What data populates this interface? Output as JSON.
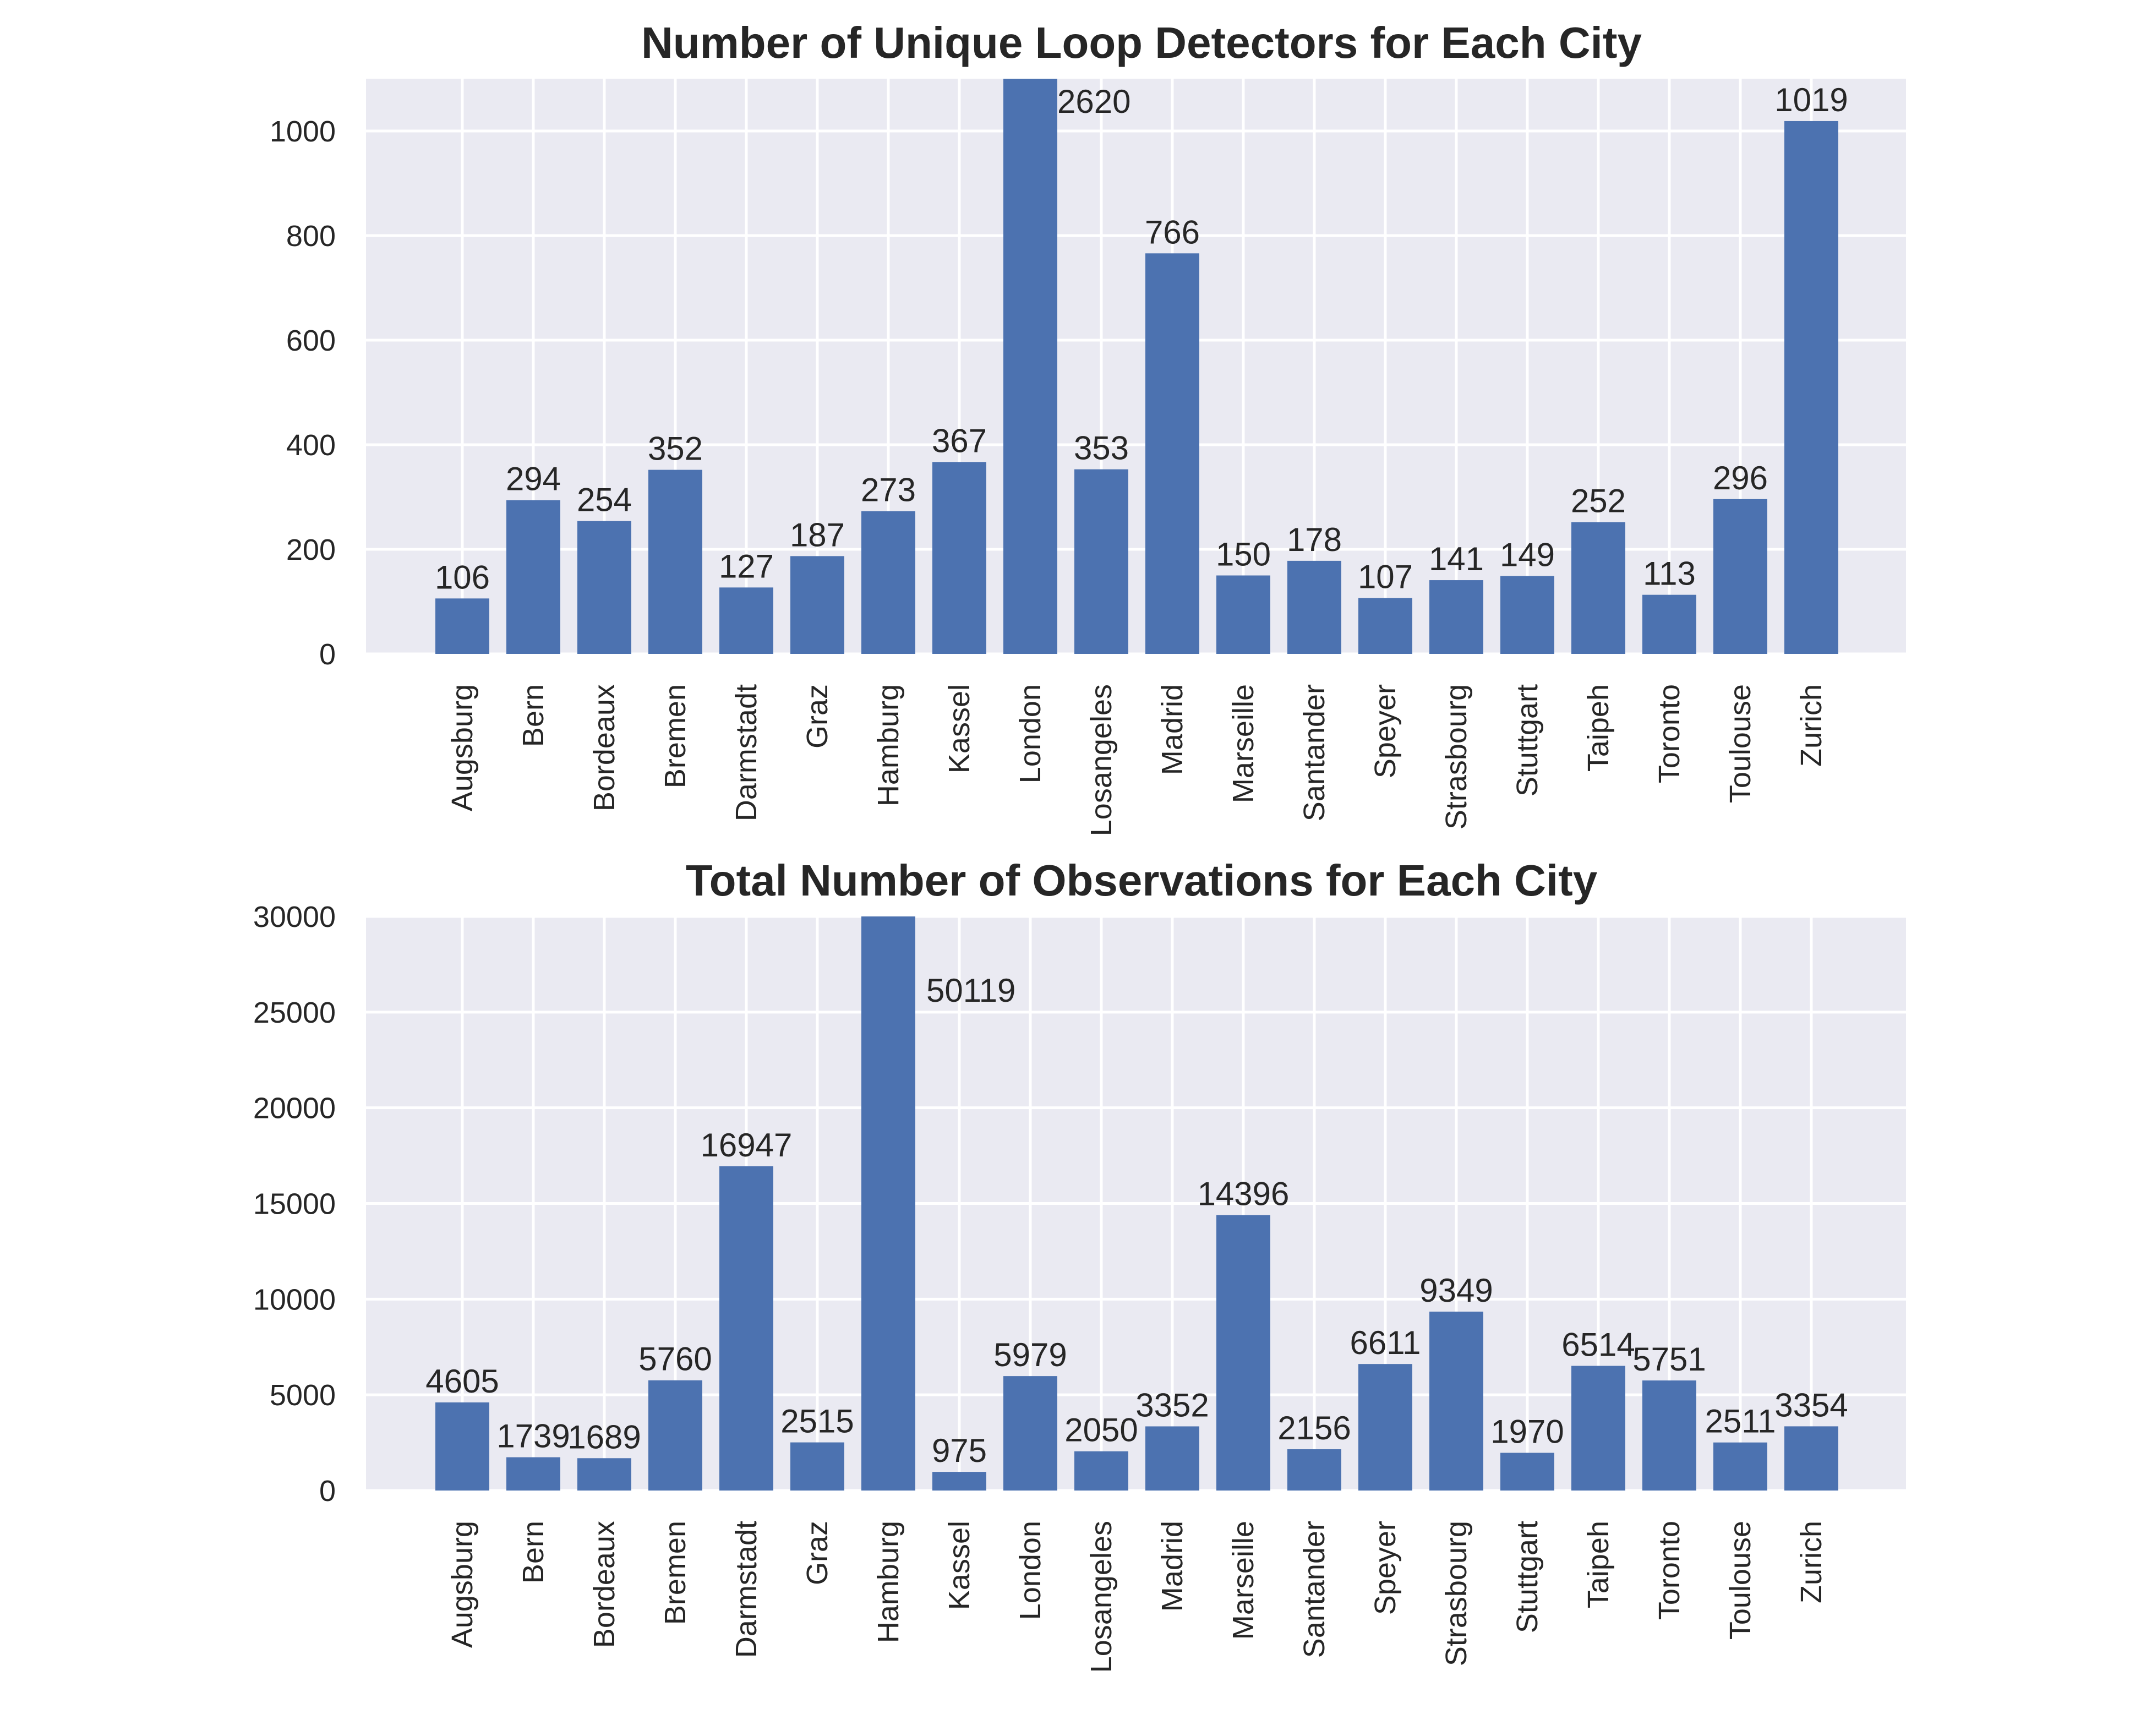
{
  "chart_data": [
    {
      "type": "bar",
      "title": "Number of Unique Loop Detectors for Each City",
      "xlabel": "",
      "ylabel": "",
      "categories": [
        "Augsburg",
        "Bern",
        "Bordeaux",
        "Bremen",
        "Darmstadt",
        "Graz",
        "Hamburg",
        "Kassel",
        "London",
        "Losangeles",
        "Madrid",
        "Marseille",
        "Santander",
        "Speyer",
        "Strasbourg",
        "Stuttgart",
        "Taipeh",
        "Toronto",
        "Toulouse",
        "Zurich"
      ],
      "values": [
        106,
        294,
        254,
        352,
        127,
        187,
        273,
        367,
        2620,
        353,
        766,
        150,
        178,
        107,
        141,
        149,
        252,
        113,
        296,
        1019
      ],
      "data_labels": [
        "106",
        "294",
        "254",
        "352",
        "127",
        "187",
        "273",
        "367",
        "2620",
        "353",
        "766",
        "150",
        "178",
        "107",
        "141",
        "149",
        "252",
        "113",
        "296",
        "1019"
      ],
      "ylim": [
        0,
        1100
      ],
      "yticks": [
        0,
        200,
        400,
        600,
        800,
        1000
      ],
      "ytick_labels": [
        "0",
        "200",
        "400",
        "600",
        "800",
        "1000"
      ],
      "grid": true,
      "legend": false,
      "bar_color": "#4c72b0",
      "background_color": "#eaeaf2"
    },
    {
      "type": "bar",
      "title": "Total Number of Observations for Each City",
      "xlabel": "",
      "ylabel": "",
      "categories": [
        "Augsburg",
        "Bern",
        "Bordeaux",
        "Bremen",
        "Darmstadt",
        "Graz",
        "Hamburg",
        "Kassel",
        "London",
        "Losangeles",
        "Madrid",
        "Marseille",
        "Santander",
        "Speyer",
        "Strasbourg",
        "Stuttgart",
        "Taipeh",
        "Toronto",
        "Toulouse",
        "Zurich"
      ],
      "values": [
        4605,
        1739,
        1689,
        5760,
        16947,
        2515,
        50119,
        975,
        5979,
        2050,
        3352,
        14396,
        2156,
        6611,
        9349,
        1970,
        6514,
        5751,
        2511,
        3354
      ],
      "data_labels": [
        "4605",
        "1739",
        "1689",
        "5760",
        "16947",
        "2515",
        "50119",
        "975",
        "5979",
        "2050",
        "3352",
        "14396",
        "2156",
        "6611",
        "9349",
        "1970",
        "6514",
        "5751",
        "2511",
        "3354"
      ],
      "ylim": [
        0,
        30000
      ],
      "yticks": [
        0,
        5000,
        10000,
        15000,
        20000,
        25000,
        30000
      ],
      "ytick_labels": [
        "0",
        "5000",
        "10000",
        "15000",
        "20000",
        "25000",
        "30000"
      ],
      "grid": true,
      "legend": false,
      "bar_color": "#4c72b0",
      "background_color": "#eaeaf2"
    }
  ]
}
